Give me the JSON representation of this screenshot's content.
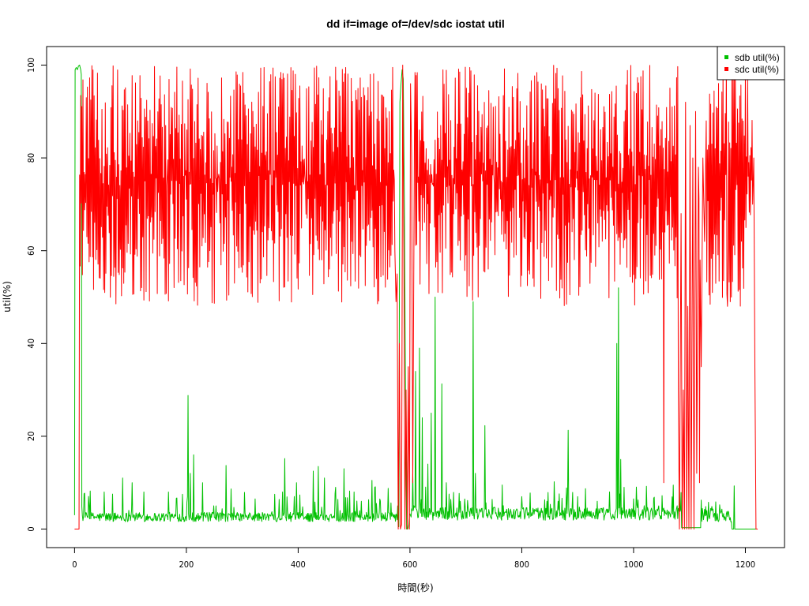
{
  "chart_data": {
    "type": "line",
    "title": "dd if=image of=/dev/sdc iostat util",
    "xlabel": "時間(秒)",
    "ylabel": "util(%)",
    "xlim": [
      -50,
      1270
    ],
    "ylim": [
      -4,
      104
    ],
    "xticks": [
      0,
      200,
      400,
      600,
      800,
      1000,
      1200
    ],
    "yticks": [
      0,
      20,
      40,
      60,
      80,
      100
    ],
    "x_tick_labels": [
      "0",
      "200",
      "400",
      "600",
      "800",
      "1000",
      "1200"
    ],
    "y_tick_labels": [
      "0",
      "20",
      "40",
      "60",
      "80",
      "100"
    ],
    "grid": false,
    "legend_position": "top-right",
    "x_step": 1,
    "series": [
      {
        "name": "sdb util(%)",
        "color": "#00c000",
        "segments": [
          {
            "start": 0,
            "end": 12,
            "mode": "points",
            "points": [
              [
                0,
                3
              ],
              [
                1,
                99
              ],
              [
                3,
                99.5
              ],
              [
                5,
                99
              ],
              [
                7,
                99.8
              ],
              [
                9,
                100
              ],
              [
                11,
                99
              ],
              [
                12,
                98
              ]
            ]
          },
          {
            "start": 13,
            "end": 575,
            "mode": "noise",
            "base": 2.6,
            "amp": 1.0,
            "spikeProb": 0.09,
            "spikeMax": 6
          },
          {
            "start": 576,
            "end": 599,
            "mode": "points",
            "points": [
              [
                576,
                3
              ],
              [
                578,
                1
              ],
              [
                580,
                0.5
              ],
              [
                582,
                92
              ],
              [
                584,
                96
              ],
              [
                586,
                99
              ],
              [
                588,
                97
              ],
              [
                590,
                70
              ],
              [
                592,
                30
              ],
              [
                594,
                0
              ],
              [
                596,
                0
              ],
              [
                598,
                1
              ],
              [
                599,
                3
              ]
            ]
          },
          {
            "start": 600,
            "end": 1085,
            "mode": "noise",
            "base": 3.3,
            "amp": 1.4,
            "spikeProb": 0.12,
            "spikeMax": 6
          },
          {
            "start": 1086,
            "end": 1120,
            "mode": "constant",
            "value": 0.3
          },
          {
            "start": 1121,
            "end": 1175,
            "mode": "noise",
            "base": 3.0,
            "amp": 1.5,
            "spikeProb": 0.2,
            "spikeMax": 3
          },
          {
            "start": 1176,
            "end": 1222,
            "mode": "constant",
            "value": 0
          }
        ],
        "spikes": [
          [
            53,
            8
          ],
          [
            86,
            11
          ],
          [
            103,
            10
          ],
          [
            124,
            8
          ],
          [
            168,
            8
          ],
          [
            193,
            7.5
          ],
          [
            203,
            28.8
          ],
          [
            207,
            12
          ],
          [
            213,
            16
          ],
          [
            229,
            10
          ],
          [
            253,
            5
          ],
          [
            271,
            13.7
          ],
          [
            323,
            6.5
          ],
          [
            358,
            7.5
          ],
          [
            372,
            8
          ],
          [
            376,
            15.2
          ],
          [
            397,
            10
          ],
          [
            427,
            12.5
          ],
          [
            436,
            13.5
          ],
          [
            447,
            11
          ],
          [
            467,
            9
          ],
          [
            482,
            13
          ],
          [
            500,
            8
          ],
          [
            532,
            10.5
          ],
          [
            537,
            9
          ],
          [
            578,
            5
          ],
          [
            605,
            12
          ],
          [
            610,
            34
          ],
          [
            617,
            39
          ],
          [
            622,
            24
          ],
          [
            632,
            14
          ],
          [
            638,
            25
          ],
          [
            645,
            50
          ],
          [
            657,
            31.3
          ],
          [
            665,
            10
          ],
          [
            690,
            6
          ],
          [
            713,
            49
          ],
          [
            717,
            12
          ],
          [
            734,
            22.3
          ],
          [
            765,
            9.5
          ],
          [
            800,
            7
          ],
          [
            845,
            6
          ],
          [
            865,
            6
          ],
          [
            883,
            21.3
          ],
          [
            900,
            7
          ],
          [
            935,
            6
          ],
          [
            970,
            40
          ],
          [
            973,
            52
          ],
          [
            977,
            15
          ],
          [
            983,
            9
          ],
          [
            1000,
            6.5
          ],
          [
            1045,
            5
          ],
          [
            1180,
            9.3
          ]
        ]
      },
      {
        "name": "sdc util(%)",
        "color": "#ff0000",
        "segments": [
          {
            "start": 0,
            "end": 8,
            "mode": "constant",
            "value": 0
          },
          {
            "start": 9,
            "end": 572,
            "mode": "oscillate",
            "hiMin": 74,
            "hiMax": 100,
            "loMin": 48,
            "loMax": 77
          },
          {
            "start": 573,
            "end": 608,
            "mode": "points",
            "points": [
              [
                573,
                60
              ],
              [
                575,
                49
              ],
              [
                577,
                55
              ],
              [
                579,
                0
              ],
              [
                581,
                40
              ],
              [
                583,
                0
              ],
              [
                585,
                1
              ],
              [
                587,
                100
              ],
              [
                589,
                60
              ],
              [
                591,
                0
              ],
              [
                593,
                30
              ],
              [
                595,
                0
              ],
              [
                597,
                35
              ],
              [
                599,
                0
              ],
              [
                601,
                96
              ],
              [
                603,
                80
              ],
              [
                605,
                10
              ],
              [
                607,
                60
              ],
              [
                608,
                85
              ]
            ]
          },
          {
            "start": 609,
            "end": 1079,
            "mode": "oscillate",
            "hiMin": 74,
            "hiMax": 100,
            "loMin": 48,
            "loMax": 77
          },
          {
            "start": 1080,
            "end": 1130,
            "mode": "points",
            "points": [
              [
                1080,
                30
              ],
              [
                1082,
                0
              ],
              [
                1085,
                68
              ],
              [
                1087,
                0
              ],
              [
                1089,
                30
              ],
              [
                1091,
                0
              ],
              [
                1093,
                92
              ],
              [
                1095,
                0
              ],
              [
                1097,
                48
              ],
              [
                1099,
                0
              ],
              [
                1101,
                87
              ],
              [
                1103,
                0
              ],
              [
                1106,
                80
              ],
              [
                1108,
                0
              ],
              [
                1111,
                90
              ],
              [
                1113,
                12
              ],
              [
                1116,
                78
              ],
              [
                1119,
                58
              ],
              [
                1121,
                35
              ],
              [
                1124,
                80
              ],
              [
                1127,
                62
              ],
              [
                1130,
                88
              ]
            ]
          },
          {
            "start": 1131,
            "end": 1212,
            "mode": "oscillate",
            "hiMin": 74,
            "hiMax": 100,
            "loMin": 48,
            "loMax": 77
          },
          {
            "start": 1213,
            "end": 1222,
            "mode": "points",
            "points": [
              [
                1213,
                70
              ],
              [
                1215,
                80
              ],
              [
                1217,
                35
              ],
              [
                1219,
                0
              ],
              [
                1222,
                0
              ]
            ]
          }
        ],
        "spikes": [
          [
            1168,
            48
          ],
          [
            1175,
            50
          ],
          [
            1178,
            30
          ],
          [
            1054,
            10
          ],
          [
            1118,
            10
          ],
          [
            1178,
            97
          ]
        ]
      }
    ]
  }
}
